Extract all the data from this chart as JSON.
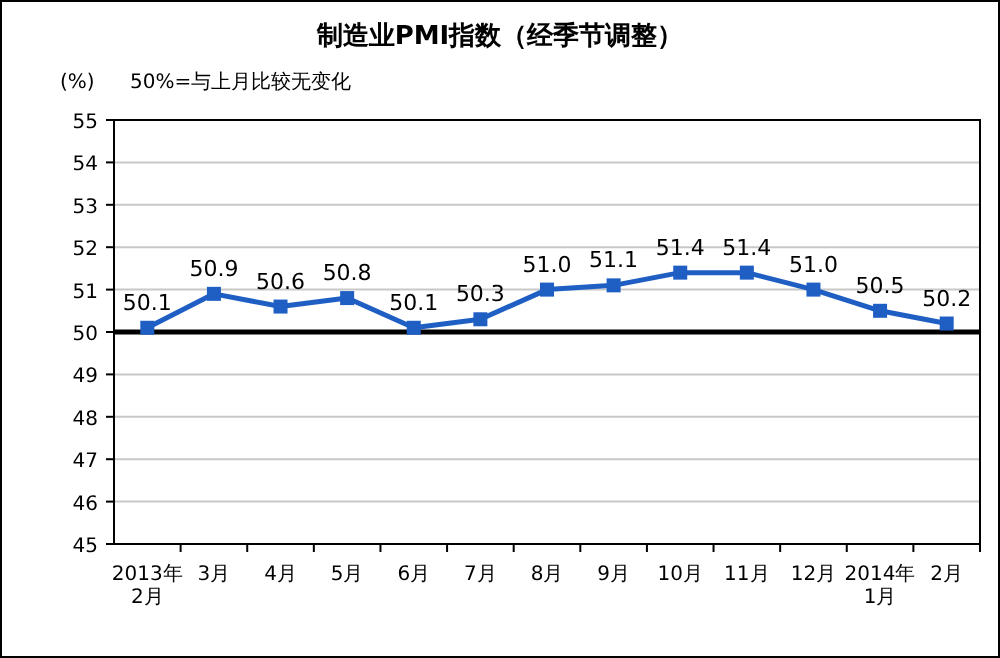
{
  "chart_data": {
    "type": "line",
    "title": "制造业PMI指数（经季节调整）",
    "ylabel": "(%)",
    "annotations": [
      "50%=与上月比较无变化"
    ],
    "categories": [
      "2013年\n2月",
      "3月",
      "4月",
      "5月",
      "6月",
      "7月",
      "8月",
      "9月",
      "10月",
      "11月",
      "12月",
      "2014年\n1月",
      "2月"
    ],
    "series": [
      {
        "color": "#1f5fc4",
        "values": [
          50.1,
          50.9,
          50.6,
          50.8,
          50.1,
          50.3,
          51.0,
          51.1,
          51.4,
          51.4,
          51.0,
          50.5,
          50.2
        ],
        "value_labels": [
          "50.1",
          "50.9",
          "50.6",
          "50.8",
          "50.1",
          "50.3",
          "51.0",
          "51.1",
          "51.4",
          "51.4",
          "51.0",
          "50.5",
          "50.2"
        ]
      }
    ],
    "ylim": [
      45,
      55
    ],
    "yticks": [
      45,
      46,
      47,
      48,
      49,
      50,
      51,
      52,
      53,
      54,
      55
    ],
    "grid": "y",
    "marker": "square",
    "line_style": "solid",
    "ref_lines": [
      {
        "axis": "y",
        "value": 50,
        "color": "#000000"
      }
    ]
  }
}
